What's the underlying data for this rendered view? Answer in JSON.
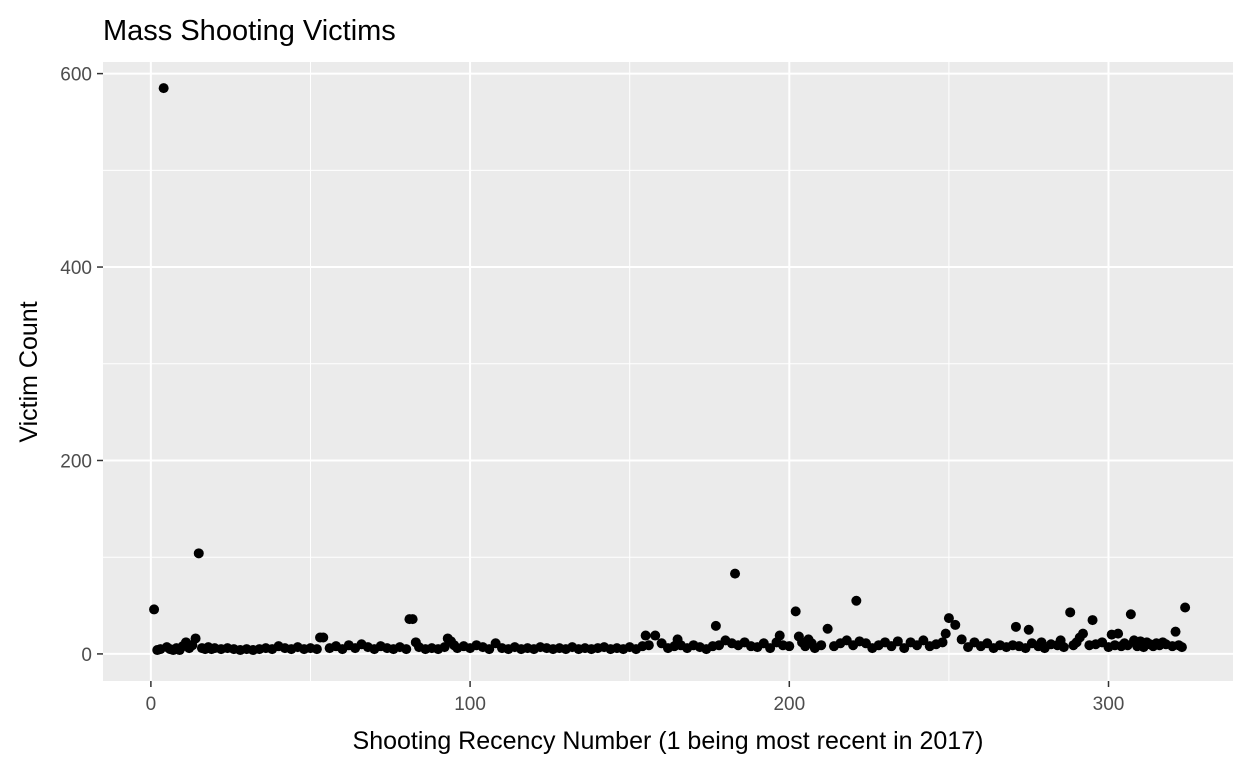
{
  "chart_data": {
    "type": "scatter",
    "title": "Mass Shooting Victims",
    "xlabel": "Shooting Recency Number (1 being most recent in 2017)",
    "ylabel": "Victim Count",
    "xlim": [
      -15,
      339
    ],
    "ylim": [
      -28,
      612
    ],
    "x_ticks": [
      0,
      100,
      200,
      300
    ],
    "x_tick_labels": [
      "0",
      "100",
      "200",
      "300"
    ],
    "y_ticks": [
      0,
      200,
      400,
      600
    ],
    "y_tick_labels": [
      "0",
      "200",
      "400",
      "600"
    ],
    "grid": true,
    "legend": "none",
    "point_color": "#000000",
    "panel_color": "#ebebeb",
    "series": [
      {
        "points": [
          [
            1,
            46
          ],
          [
            2,
            4
          ],
          [
            3,
            5
          ],
          [
            4,
            585
          ],
          [
            5,
            7
          ],
          [
            6,
            5
          ],
          [
            7,
            4
          ],
          [
            8,
            6
          ],
          [
            9,
            4
          ],
          [
            10,
            8
          ],
          [
            11,
            12
          ],
          [
            12,
            6
          ],
          [
            13,
            9
          ],
          [
            14,
            16
          ],
          [
            15,
            104
          ],
          [
            16,
            6
          ],
          [
            17,
            5
          ],
          [
            18,
            7
          ],
          [
            19,
            5
          ],
          [
            20,
            6
          ],
          [
            22,
            5
          ],
          [
            24,
            6
          ],
          [
            26,
            5
          ],
          [
            28,
            4
          ],
          [
            30,
            5
          ],
          [
            32,
            4
          ],
          [
            34,
            5
          ],
          [
            36,
            6
          ],
          [
            38,
            5
          ],
          [
            40,
            8
          ],
          [
            42,
            6
          ],
          [
            44,
            5
          ],
          [
            46,
            7
          ],
          [
            48,
            5
          ],
          [
            50,
            6
          ],
          [
            52,
            5
          ],
          [
            53,
            17
          ],
          [
            54,
            17
          ],
          [
            56,
            6
          ],
          [
            58,
            8
          ],
          [
            60,
            5
          ],
          [
            62,
            9
          ],
          [
            64,
            6
          ],
          [
            66,
            10
          ],
          [
            68,
            7
          ],
          [
            70,
            5
          ],
          [
            72,
            8
          ],
          [
            74,
            6
          ],
          [
            76,
            5
          ],
          [
            78,
            7
          ],
          [
            80,
            5
          ],
          [
            81,
            36
          ],
          [
            82,
            36
          ],
          [
            83,
            12
          ],
          [
            84,
            7
          ],
          [
            86,
            5
          ],
          [
            88,
            6
          ],
          [
            90,
            5
          ],
          [
            92,
            7
          ],
          [
            93,
            16
          ],
          [
            94,
            13
          ],
          [
            95,
            9
          ],
          [
            96,
            6
          ],
          [
            98,
            8
          ],
          [
            100,
            6
          ],
          [
            102,
            9
          ],
          [
            104,
            7
          ],
          [
            106,
            5
          ],
          [
            108,
            11
          ],
          [
            110,
            6
          ],
          [
            112,
            5
          ],
          [
            114,
            7
          ],
          [
            116,
            5
          ],
          [
            118,
            6
          ],
          [
            120,
            5
          ],
          [
            122,
            7
          ],
          [
            124,
            6
          ],
          [
            126,
            5
          ],
          [
            128,
            6
          ],
          [
            130,
            5
          ],
          [
            132,
            7
          ],
          [
            134,
            5
          ],
          [
            136,
            6
          ],
          [
            138,
            5
          ],
          [
            140,
            6
          ],
          [
            142,
            7
          ],
          [
            144,
            5
          ],
          [
            146,
            6
          ],
          [
            148,
            5
          ],
          [
            150,
            7
          ],
          [
            152,
            5
          ],
          [
            154,
            8
          ],
          [
            155,
            19
          ],
          [
            156,
            9
          ],
          [
            158,
            19
          ],
          [
            160,
            11
          ],
          [
            162,
            6
          ],
          [
            164,
            8
          ],
          [
            165,
            15
          ],
          [
            166,
            9
          ],
          [
            168,
            6
          ],
          [
            170,
            9
          ],
          [
            172,
            7
          ],
          [
            174,
            5
          ],
          [
            176,
            8
          ],
          [
            177,
            29
          ],
          [
            178,
            9
          ],
          [
            180,
            14
          ],
          [
            182,
            11
          ],
          [
            183,
            83
          ],
          [
            184,
            9
          ],
          [
            186,
            12
          ],
          [
            188,
            8
          ],
          [
            190,
            7
          ],
          [
            192,
            11
          ],
          [
            194,
            6
          ],
          [
            196,
            12
          ],
          [
            197,
            19
          ],
          [
            198,
            9
          ],
          [
            200,
            8
          ],
          [
            202,
            44
          ],
          [
            203,
            18
          ],
          [
            204,
            12
          ],
          [
            205,
            8
          ],
          [
            206,
            15
          ],
          [
            207,
            11
          ],
          [
            208,
            6
          ],
          [
            210,
            9
          ],
          [
            212,
            26
          ],
          [
            214,
            8
          ],
          [
            216,
            11
          ],
          [
            218,
            14
          ],
          [
            220,
            9
          ],
          [
            221,
            55
          ],
          [
            222,
            13
          ],
          [
            224,
            11
          ],
          [
            226,
            6
          ],
          [
            228,
            9
          ],
          [
            230,
            12
          ],
          [
            232,
            8
          ],
          [
            234,
            13
          ],
          [
            236,
            6
          ],
          [
            238,
            12
          ],
          [
            240,
            9
          ],
          [
            242,
            14
          ],
          [
            244,
            8
          ],
          [
            246,
            10
          ],
          [
            248,
            12
          ],
          [
            249,
            21
          ],
          [
            250,
            37
          ],
          [
            252,
            30
          ],
          [
            254,
            15
          ],
          [
            256,
            7
          ],
          [
            258,
            12
          ],
          [
            260,
            8
          ],
          [
            262,
            11
          ],
          [
            264,
            6
          ],
          [
            266,
            9
          ],
          [
            268,
            7
          ],
          [
            270,
            9
          ],
          [
            271,
            28
          ],
          [
            272,
            8
          ],
          [
            274,
            6
          ],
          [
            275,
            25
          ],
          [
            276,
            11
          ],
          [
            278,
            8
          ],
          [
            279,
            12
          ],
          [
            280,
            6
          ],
          [
            282,
            10
          ],
          [
            284,
            9
          ],
          [
            285,
            14
          ],
          [
            286,
            7
          ],
          [
            288,
            43
          ],
          [
            289,
            9
          ],
          [
            290,
            12
          ],
          [
            291,
            17
          ],
          [
            292,
            21
          ],
          [
            294,
            9
          ],
          [
            295,
            35
          ],
          [
            296,
            10
          ],
          [
            298,
            12
          ],
          [
            300,
            7
          ],
          [
            301,
            20
          ],
          [
            302,
            9
          ],
          [
            303,
            21
          ],
          [
            304,
            8
          ],
          [
            305,
            11
          ],
          [
            306,
            9
          ],
          [
            307,
            41
          ],
          [
            308,
            14
          ],
          [
            309,
            8
          ],
          [
            310,
            13
          ],
          [
            311,
            7
          ],
          [
            312,
            12
          ],
          [
            313,
            10
          ],
          [
            314,
            8
          ],
          [
            315,
            11
          ],
          [
            316,
            9
          ],
          [
            317,
            12
          ],
          [
            318,
            10
          ],
          [
            320,
            8
          ],
          [
            321,
            23
          ],
          [
            322,
            9
          ],
          [
            323,
            7
          ],
          [
            324,
            48
          ]
        ]
      }
    ]
  }
}
